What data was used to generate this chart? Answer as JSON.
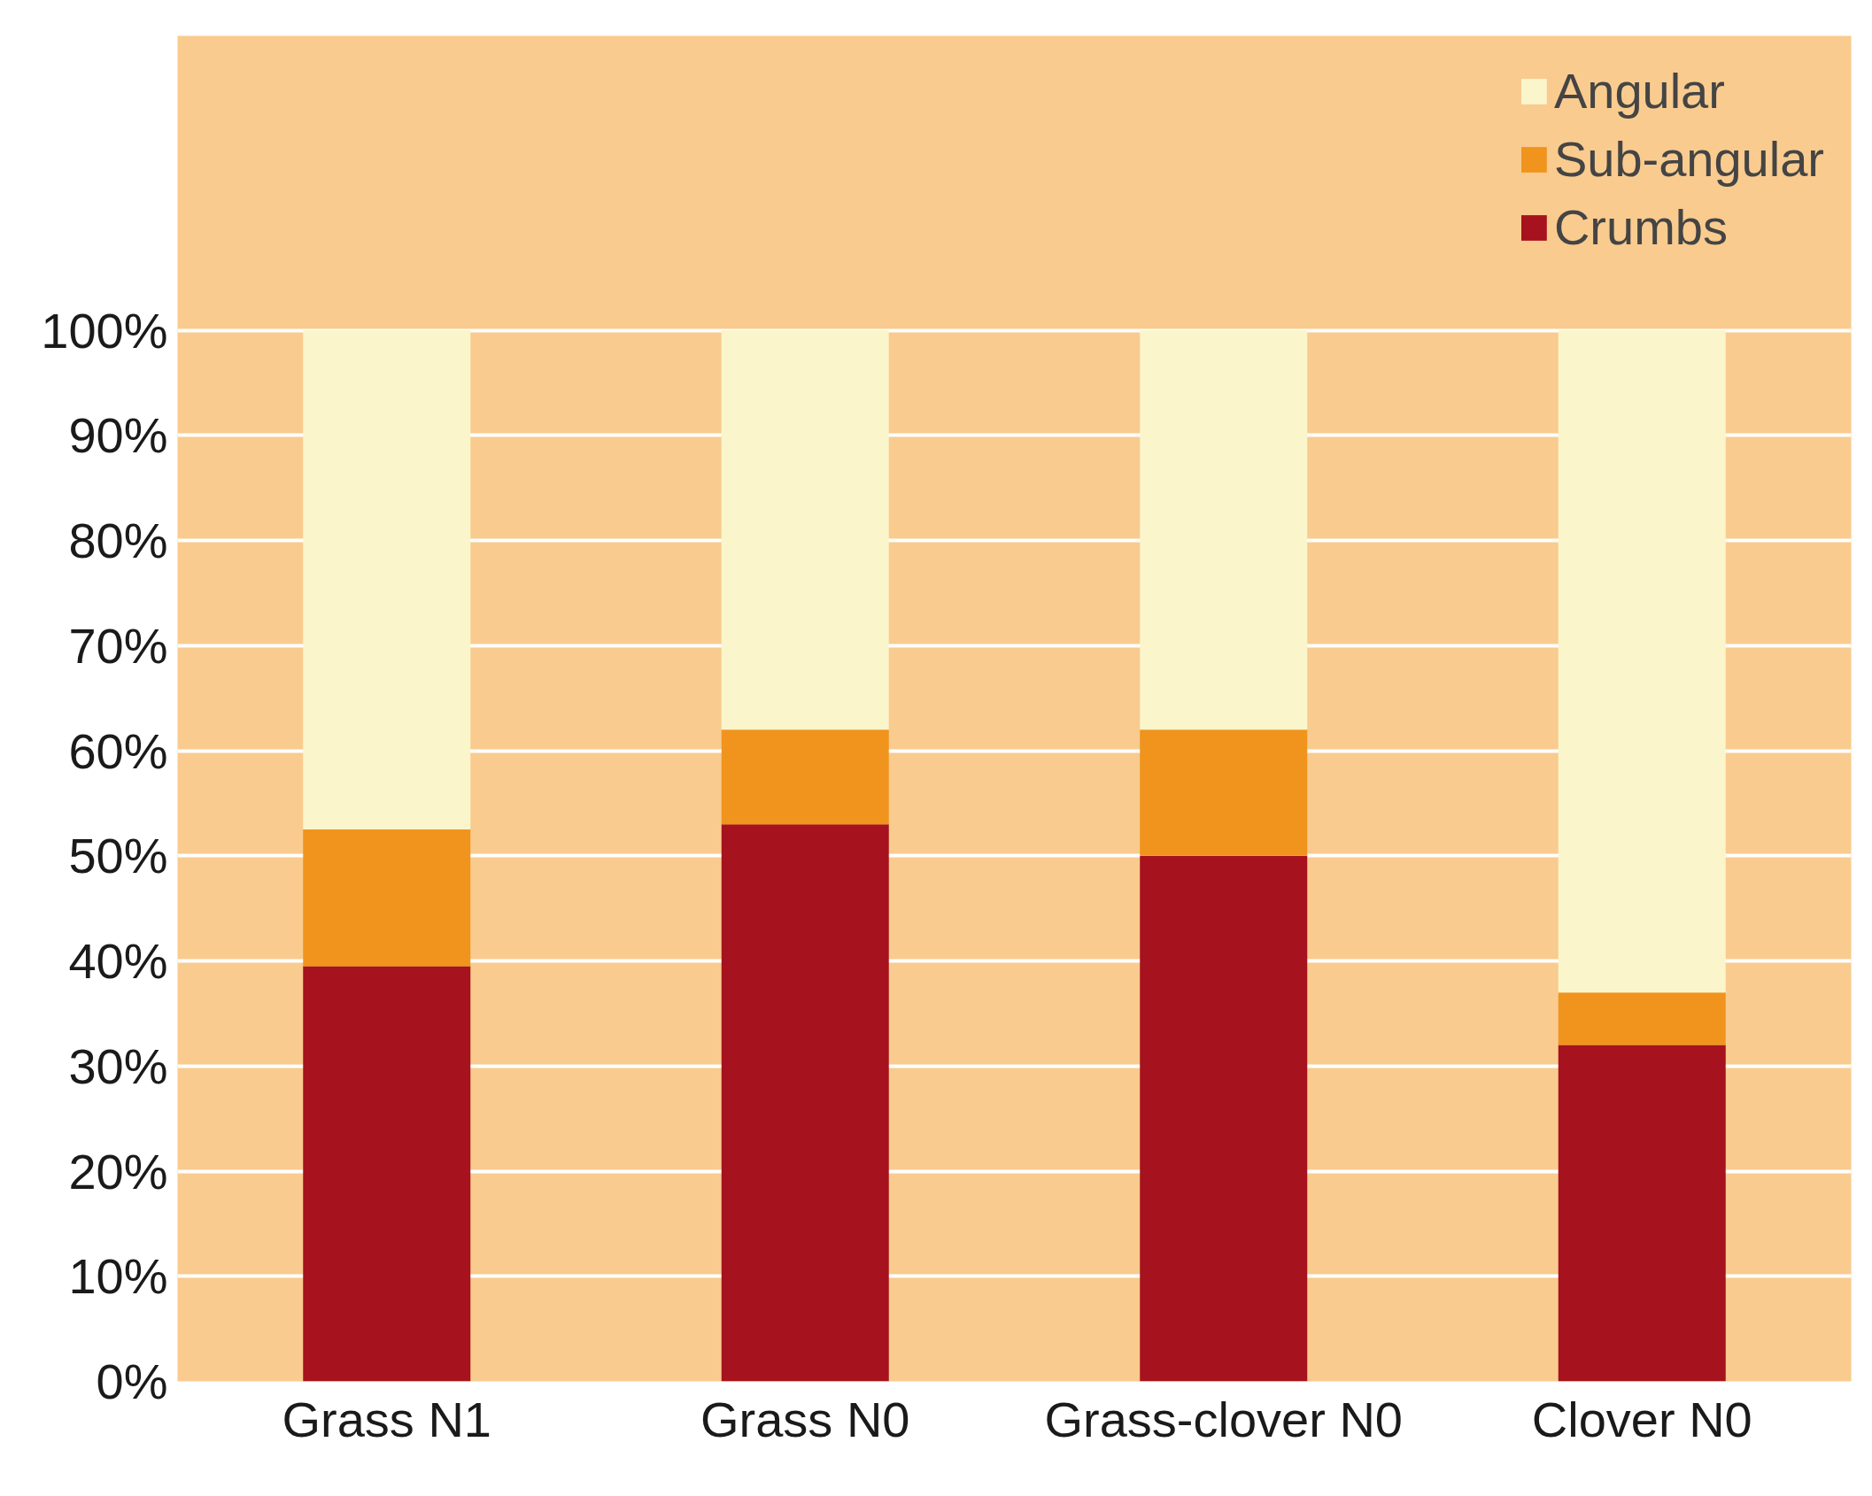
{
  "chart_data": {
    "type": "bar",
    "stacked": true,
    "categories": [
      "Grass N1",
      "Grass N0",
      "Grass-clover N0",
      "Clover N0"
    ],
    "series": [
      {
        "name": "Crumbs",
        "color": "#a6121d",
        "values": [
          39.5,
          53,
          50,
          32
        ]
      },
      {
        "name": "Sub-angular",
        "color": "#f0941d",
        "values": [
          13,
          9,
          12,
          5
        ]
      },
      {
        "name": "Angular",
        "color": "#fbf5cc",
        "values": [
          47.5,
          38,
          38,
          63
        ]
      }
    ],
    "ylim": [
      0,
      128
    ],
    "yticks": [
      {
        "value": 0,
        "label": "0%"
      },
      {
        "value": 10,
        "label": "10%"
      },
      {
        "value": 20,
        "label": "20%"
      },
      {
        "value": 30,
        "label": "30%"
      },
      {
        "value": 40,
        "label": "40%"
      },
      {
        "value": 50,
        "label": "50%"
      },
      {
        "value": 60,
        "label": "60%"
      },
      {
        "value": 70,
        "label": "70%"
      },
      {
        "value": 80,
        "label": "80%"
      },
      {
        "value": 90,
        "label": "90%"
      },
      {
        "value": 100,
        "label": "100%"
      }
    ],
    "grid": "y",
    "legend": "top right"
  }
}
